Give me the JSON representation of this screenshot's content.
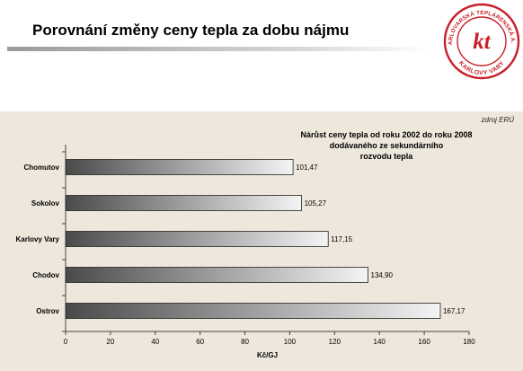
{
  "header": {
    "title": "Porovnání změny ceny tepla za dobu nájmu"
  },
  "logo": {
    "text_top": "KARLOVARSKÁ TEPLÁRENSKÁ A.S.",
    "text_bottom": "KARLOVY VARY",
    "monogram": "kt",
    "color": "#c8202a"
  },
  "chart_data": {
    "type": "bar",
    "orientation": "horizontal",
    "source_note": "zdroj ERÚ",
    "title_lines": [
      "Nárůst ceny tepla od roku 2002 do roku 2008",
      "dodávaného ze sekundárního",
      "rozvodu tepla"
    ],
    "categories": [
      "Chomutov",
      "Sokolov",
      "Karlovy Vary",
      "Chodov",
      "Ostrov"
    ],
    "values": [
      101.47,
      105.27,
      117.15,
      134.9,
      167.17
    ],
    "value_labels": [
      "101,47",
      "105,27",
      "117,15",
      "134,90",
      "167,17"
    ],
    "xlabel": "Kč/GJ",
    "ylabel": "",
    "xlim": [
      0,
      180
    ],
    "xticks": [
      0,
      20,
      40,
      60,
      80,
      100,
      120,
      140,
      160,
      180
    ],
    "grid": false,
    "legend": "none",
    "colors": {
      "panel_background": "#eee8dc",
      "bar_dark": "#4a4a4a",
      "bar_light": "#f4f4f4",
      "bar_border": "#222222"
    }
  }
}
